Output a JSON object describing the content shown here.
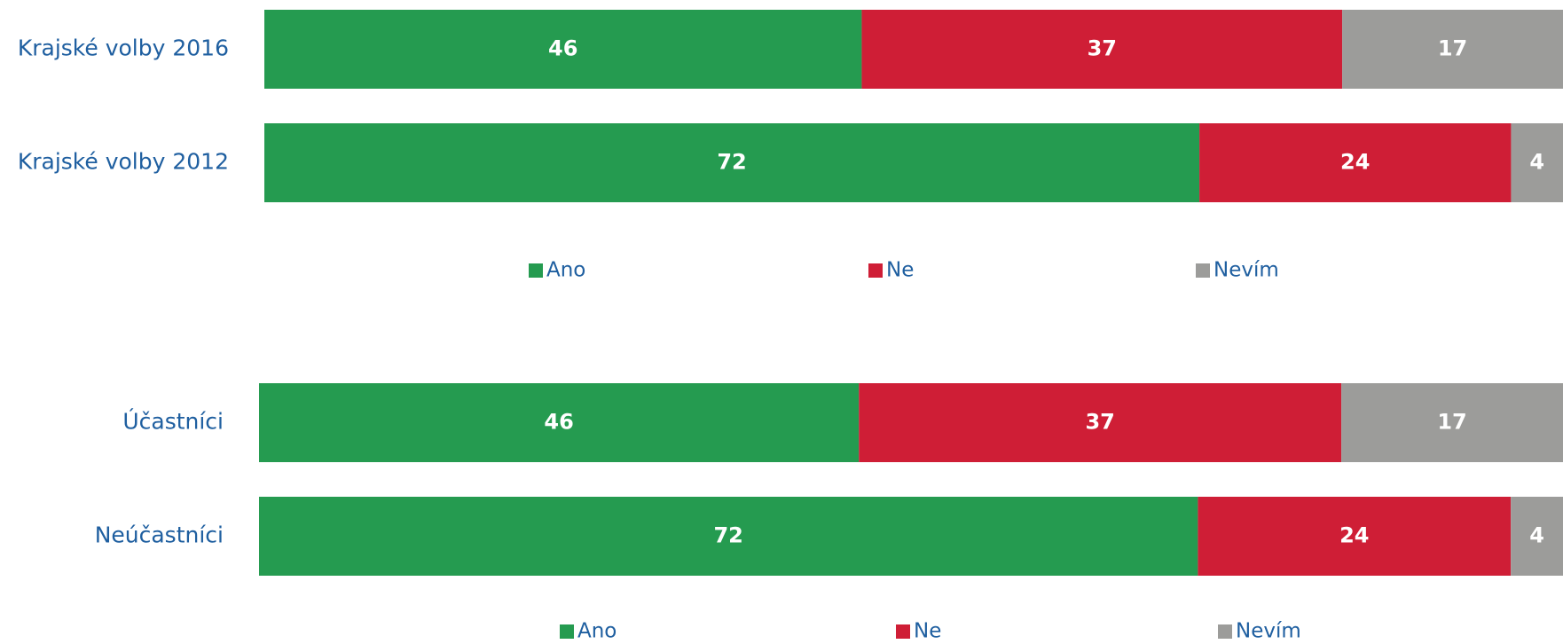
{
  "chart_data": [
    {
      "type": "bar",
      "orientation": "horizontal",
      "stacked": true,
      "categories": [
        "Krajské volby 2016",
        "Krajské volby 2012"
      ],
      "series": [
        {
          "name": "Ano",
          "color": "#259b50",
          "values": [
            46,
            72
          ]
        },
        {
          "name": "Ne",
          "color": "#cf1e36",
          "values": [
            37,
            24
          ]
        },
        {
          "name": "Nevím",
          "color": "#9c9c9a",
          "values": [
            17,
            4
          ]
        }
      ],
      "xlim": [
        0,
        100
      ],
      "legend": "bottom"
    },
    {
      "type": "bar",
      "orientation": "horizontal",
      "stacked": true,
      "categories": [
        "Účastníci",
        "Neúčastníci"
      ],
      "series": [
        {
          "name": "Ano",
          "color": "#259b50",
          "values": [
            46,
            72
          ]
        },
        {
          "name": "Ne",
          "color": "#cf1e36",
          "values": [
            37,
            24
          ]
        },
        {
          "name": "Nevím",
          "color": "#9c9c9a",
          "values": [
            17,
            4
          ]
        }
      ],
      "xlim": [
        0,
        100
      ],
      "legend": "bottom"
    }
  ]
}
